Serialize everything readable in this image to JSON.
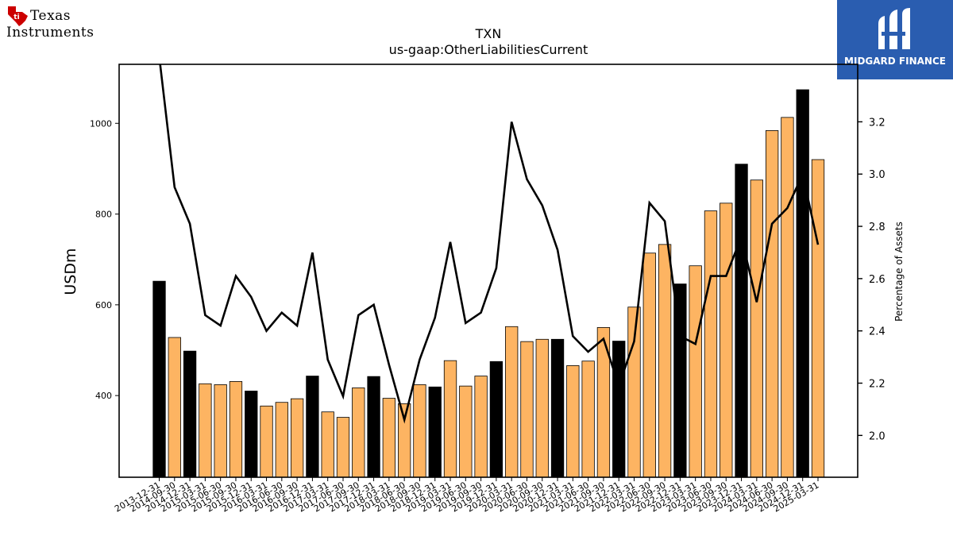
{
  "logos": {
    "left": {
      "line1": "Texas",
      "line2": "Instruments"
    },
    "right": {
      "text": "MIDGARD FINANCE",
      "bg_color": "#2a5db0"
    }
  },
  "chart_data": {
    "type": "bar",
    "title": "TXN",
    "subtitle": "us-gaap:OtherLiabilitiesCurrent",
    "ylabel": "USDm",
    "y2label": "Percentage of Assets",
    "ylim": [
      220,
      1130
    ],
    "y2lim": [
      1.84,
      3.42
    ],
    "yticks": [
      400,
      600,
      800,
      1000
    ],
    "y2ticks": [
      "2.0",
      "2.2",
      "2.4",
      "2.6",
      "2.8",
      "3.0",
      "3.2"
    ],
    "categories": [
      "2013-12-31",
      "2014-09-30",
      "2014-12-31",
      "2015-03-31",
      "2015-06-30",
      "2015-09-30",
      "2015-12-31",
      "2016-03-31",
      "2016-06-30",
      "2016-09-30",
      "2016-12-31",
      "2017-03-31",
      "2017-06-30",
      "2017-09-30",
      "2017-12-31",
      "2018-03-31",
      "2018-06-30",
      "2018-09-30",
      "2018-12-31",
      "2019-03-31",
      "2019-06-30",
      "2019-09-30",
      "2019-12-31",
      "2020-03-31",
      "2020-06-30",
      "2020-09-30",
      "2020-12-31",
      "2021-03-31",
      "2021-06-30",
      "2021-09-30",
      "2021-12-31",
      "2022-03-31",
      "2022-06-30",
      "2022-09-30",
      "2022-12-31",
      "2023-03-31",
      "2023-06-30",
      "2023-09-30",
      "2023-12-31",
      "2024-03-31",
      "2024-06-30",
      "2024-09-30",
      "2024-12-31",
      "2025-03-31"
    ],
    "series": [
      {
        "type": "bar",
        "values": [
          652,
          528,
          498,
          426,
          424,
          431,
          410,
          377,
          385,
          393,
          443,
          364,
          352,
          417,
          442,
          394,
          382,
          424,
          419,
          477,
          421,
          443,
          475,
          552,
          519,
          524,
          524,
          466,
          476,
          550,
          520,
          595,
          714,
          733,
          646,
          686,
          807,
          824,
          910,
          875,
          984,
          1013,
          1074,
          920
        ],
        "colors": [
          "#000000",
          "#fdb462",
          "#000000",
          "#fdb462",
          "#fdb462",
          "#fdb462",
          "#000000",
          "#fdb462",
          "#fdb462",
          "#fdb462",
          "#000000",
          "#fdb462",
          "#fdb462",
          "#fdb462",
          "#000000",
          "#fdb462",
          "#fdb462",
          "#fdb462",
          "#000000",
          "#fdb462",
          "#fdb462",
          "#fdb462",
          "#000000",
          "#fdb462",
          "#fdb462",
          "#fdb462",
          "#000000",
          "#fdb462",
          "#fdb462",
          "#fdb462",
          "#000000",
          "#fdb462",
          "#fdb462",
          "#fdb462",
          "#000000",
          "#fdb462",
          "#fdb462",
          "#fdb462",
          "#000000",
          "#fdb462",
          "#fdb462",
          "#fdb462",
          "#000000",
          "#fdb462"
        ]
      },
      {
        "type": "line",
        "axis": "right",
        "color": "#000000",
        "values": [
          3.45,
          2.95,
          2.81,
          2.46,
          2.42,
          2.61,
          2.53,
          2.4,
          2.47,
          2.42,
          2.7,
          2.29,
          2.15,
          2.46,
          2.5,
          2.27,
          2.06,
          2.29,
          2.45,
          2.74,
          2.43,
          2.47,
          2.64,
          3.2,
          2.98,
          2.88,
          2.71,
          2.38,
          2.32,
          2.37,
          2.19,
          2.36,
          2.89,
          2.82,
          2.38,
          2.35,
          2.61,
          2.61,
          2.76,
          2.51,
          2.81,
          2.87,
          3.0,
          2.73
        ]
      }
    ]
  }
}
